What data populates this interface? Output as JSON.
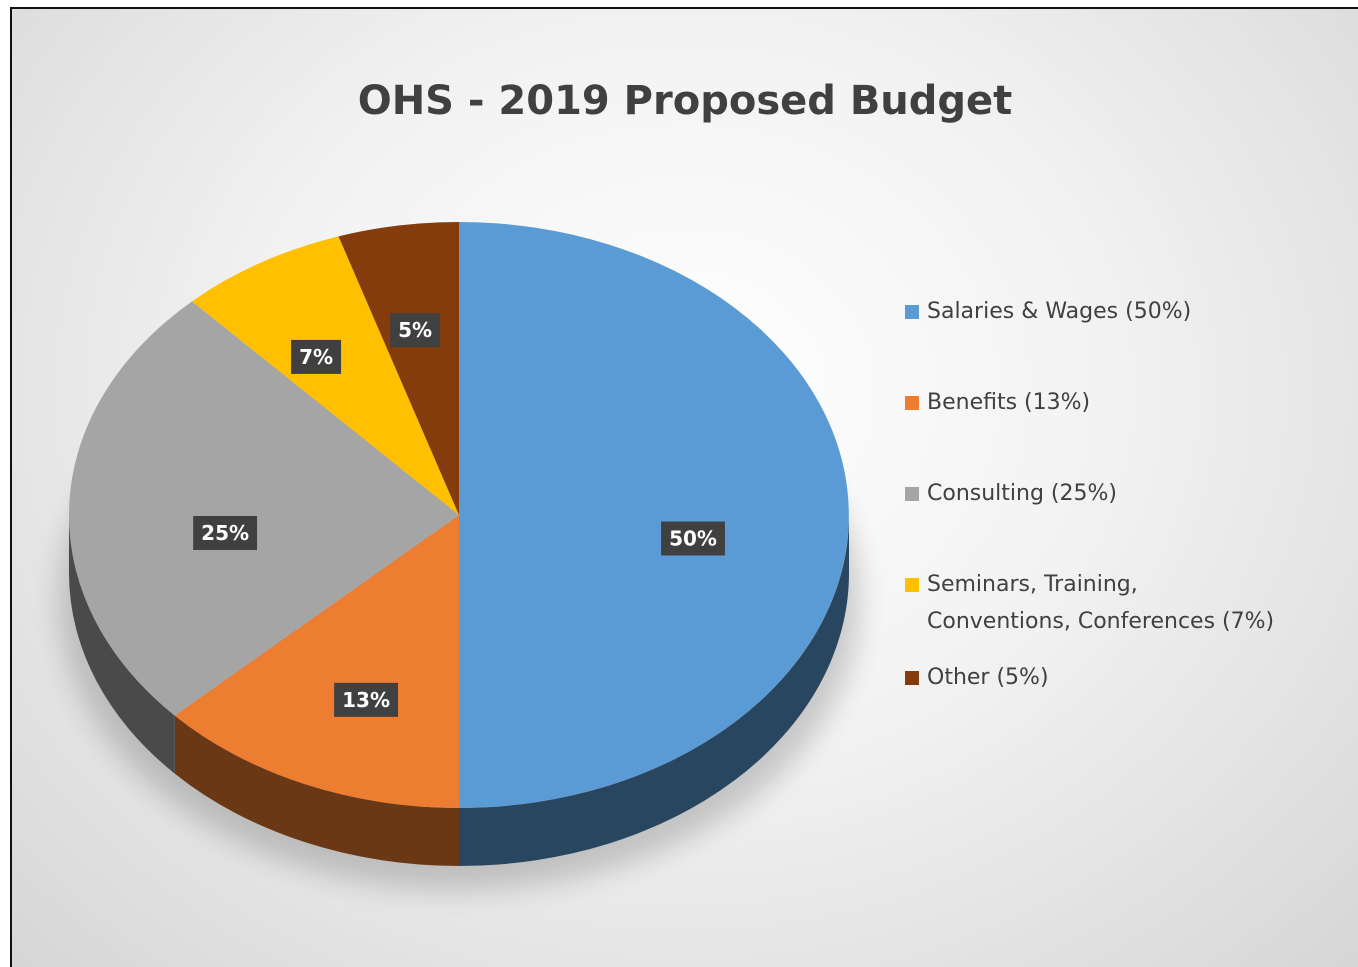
{
  "chart_data": {
    "type": "pie3d",
    "title": "OHS - 2019 Proposed Budget",
    "categories": [
      "Salaries & Wages (50%)",
      "Benefits (13%)",
      "Consulting (25%)",
      "Seminars, Training, Conventions, Conferences (7%)",
      "Other (5%)"
    ],
    "values": [
      50,
      13,
      25,
      7,
      5
    ],
    "value_labels": [
      "50%",
      "13%",
      "25%",
      "7%",
      "5%"
    ],
    "colors": [
      "#5b9bd5",
      "#ed7d31",
      "#a5a5a5",
      "#ffc000",
      "#843c0c"
    ],
    "legend": "right"
  }
}
